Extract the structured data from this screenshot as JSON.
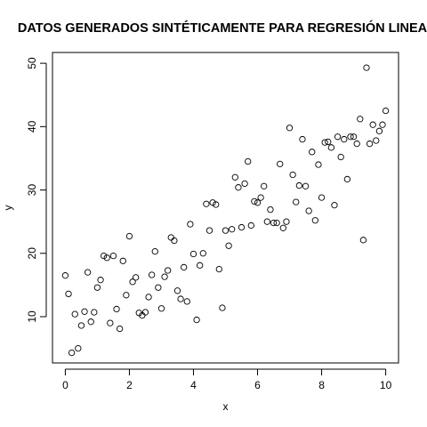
{
  "chart_data": {
    "type": "scatter",
    "title": "DATOS GENERADOS SINTÉTICAMENTE PARA REGRESIÓN LINEA",
    "xlabel": "x",
    "ylabel": "y",
    "xlim": [
      -0.4,
      10.4
    ],
    "ylim": [
      2.7,
      51.7
    ],
    "x_ticks": [
      0,
      2,
      4,
      6,
      8,
      10
    ],
    "y_ticks": [
      10,
      20,
      30,
      40,
      50
    ],
    "grid": false,
    "legend": "none",
    "marker": "open-circle",
    "points": [
      [
        0.0,
        16.5
      ],
      [
        0.1,
        13.6
      ],
      [
        0.2,
        4.3
      ],
      [
        0.3,
        10.4
      ],
      [
        0.4,
        5.0
      ],
      [
        0.5,
        8.6
      ],
      [
        0.6,
        10.8
      ],
      [
        0.7,
        17.0
      ],
      [
        0.8,
        9.2
      ],
      [
        0.9,
        10.7
      ],
      [
        1.0,
        14.6
      ],
      [
        1.1,
        15.8
      ],
      [
        1.2,
        19.6
      ],
      [
        1.3,
        19.3
      ],
      [
        1.4,
        9.0
      ],
      [
        1.5,
        19.6
      ],
      [
        1.6,
        11.2
      ],
      [
        1.7,
        8.1
      ],
      [
        1.8,
        18.8
      ],
      [
        1.9,
        13.4
      ],
      [
        2.0,
        22.7
      ],
      [
        2.1,
        15.5
      ],
      [
        2.2,
        16.2
      ],
      [
        2.3,
        10.6
      ],
      [
        2.4,
        10.2
      ],
      [
        2.5,
        10.7
      ],
      [
        2.6,
        13.1
      ],
      [
        2.7,
        16.6
      ],
      [
        2.8,
        20.3
      ],
      [
        2.9,
        14.6
      ],
      [
        3.0,
        11.3
      ],
      [
        3.1,
        16.3
      ],
      [
        3.2,
        17.3
      ],
      [
        3.3,
        22.5
      ],
      [
        3.4,
        22.0
      ],
      [
        3.5,
        14.1
      ],
      [
        3.6,
        12.8
      ],
      [
        3.7,
        17.8
      ],
      [
        3.8,
        12.4
      ],
      [
        3.9,
        24.6
      ],
      [
        4.0,
        19.9
      ],
      [
        4.1,
        9.5
      ],
      [
        4.2,
        18.1
      ],
      [
        4.3,
        20.0
      ],
      [
        4.4,
        27.8
      ],
      [
        4.5,
        23.6
      ],
      [
        4.6,
        28.0
      ],
      [
        4.7,
        27.7
      ],
      [
        4.8,
        17.5
      ],
      [
        4.9,
        11.4
      ],
      [
        5.0,
        23.6
      ],
      [
        5.1,
        21.2
      ],
      [
        5.2,
        23.8
      ],
      [
        5.3,
        32.0
      ],
      [
        5.4,
        30.4
      ],
      [
        5.5,
        24.1
      ],
      [
        5.6,
        31.0
      ],
      [
        5.7,
        34.5
      ],
      [
        5.8,
        24.4
      ],
      [
        5.9,
        28.2
      ],
      [
        6.0,
        28.0
      ],
      [
        6.1,
        28.8
      ],
      [
        6.2,
        30.6
      ],
      [
        6.3,
        25.0
      ],
      [
        6.4,
        26.9
      ],
      [
        6.5,
        24.8
      ],
      [
        6.6,
        24.8
      ],
      [
        6.7,
        34.1
      ],
      [
        6.8,
        24.0
      ],
      [
        6.9,
        25.0
      ],
      [
        7.0,
        39.8
      ],
      [
        7.1,
        32.4
      ],
      [
        7.2,
        28.1
      ],
      [
        7.3,
        30.7
      ],
      [
        7.4,
        38.0
      ],
      [
        7.5,
        30.6
      ],
      [
        7.6,
        26.7
      ],
      [
        7.7,
        36.0
      ],
      [
        7.8,
        25.2
      ],
      [
        7.9,
        34.0
      ],
      [
        8.0,
        28.8
      ],
      [
        8.1,
        37.5
      ],
      [
        8.2,
        37.6
      ],
      [
        8.3,
        36.7
      ],
      [
        8.4,
        27.6
      ],
      [
        8.5,
        38.4
      ],
      [
        8.6,
        35.2
      ],
      [
        8.7,
        38.0
      ],
      [
        8.8,
        31.7
      ],
      [
        8.9,
        38.4
      ],
      [
        9.0,
        38.4
      ],
      [
        9.1,
        37.3
      ],
      [
        9.2,
        41.2
      ],
      [
        9.3,
        22.1
      ],
      [
        9.4,
        49.3
      ],
      [
        9.5,
        37.3
      ],
      [
        9.6,
        40.3
      ],
      [
        9.7,
        37.8
      ],
      [
        9.8,
        39.3
      ],
      [
        9.9,
        40.3
      ],
      [
        10.0,
        42.5
      ]
    ]
  }
}
